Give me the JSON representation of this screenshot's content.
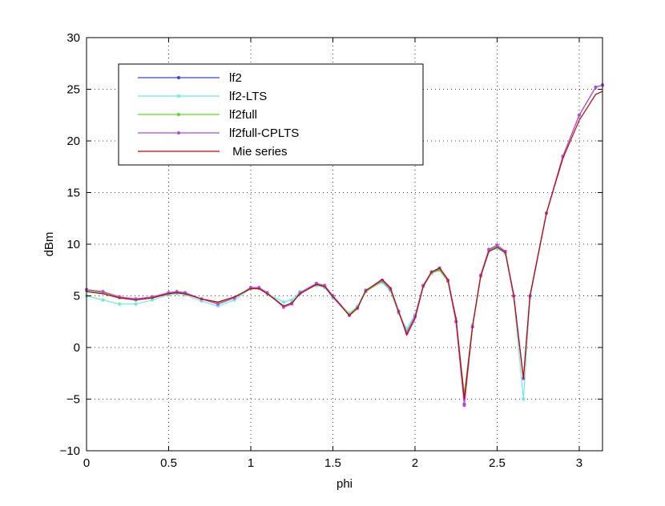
{
  "chart_data": {
    "type": "line",
    "xlabel": "phi",
    "ylabel": "dBm",
    "xlim": [
      0,
      3.1416
    ],
    "ylim": [
      -10,
      30
    ],
    "xticks": [
      0,
      0.5,
      1,
      1.5,
      2,
      2.5,
      3
    ],
    "xtick_labels": [
      "0",
      "0.5",
      "1",
      "1.5",
      "2",
      "2.5",
      "3"
    ],
    "yticks": [
      -10,
      -5,
      0,
      5,
      10,
      15,
      20,
      25,
      30
    ],
    "ytick_labels": [
      "−10",
      "−5",
      "0",
      "5",
      "10",
      "15",
      "20",
      "25",
      "30"
    ],
    "grid": true,
    "legend_position": "top-left",
    "series": [
      {
        "name": "lf2",
        "color": "#3344dd",
        "marker": true,
        "points": [
          [
            0,
            5.6
          ],
          [
            0.1,
            5.4
          ],
          [
            0.2,
            4.9
          ],
          [
            0.3,
            4.7
          ],
          [
            0.4,
            4.9
          ],
          [
            0.5,
            5.3
          ],
          [
            0.55,
            5.4
          ],
          [
            0.6,
            5.3
          ],
          [
            0.7,
            4.7
          ],
          [
            0.8,
            4.2
          ],
          [
            0.9,
            4.8
          ],
          [
            1.0,
            5.8
          ],
          [
            1.05,
            5.8
          ],
          [
            1.1,
            5.3
          ],
          [
            1.2,
            4.0
          ],
          [
            1.25,
            4.3
          ],
          [
            1.3,
            5.3
          ],
          [
            1.4,
            6.2
          ],
          [
            1.45,
            6.0
          ],
          [
            1.5,
            5.0
          ],
          [
            1.6,
            3.2
          ],
          [
            1.65,
            3.9
          ],
          [
            1.7,
            5.5
          ],
          [
            1.8,
            6.5
          ],
          [
            1.85,
            5.7
          ],
          [
            1.9,
            3.5
          ],
          [
            1.95,
            1.5
          ],
          [
            2.0,
            3.0
          ],
          [
            2.05,
            6.0
          ],
          [
            2.1,
            7.3
          ],
          [
            2.15,
            7.6
          ],
          [
            2.2,
            6.5
          ],
          [
            2.25,
            2.5
          ],
          [
            2.3,
            -5.5
          ],
          [
            2.35,
            2.0
          ],
          [
            2.4,
            7.0
          ],
          [
            2.45,
            9.5
          ],
          [
            2.5,
            9.9
          ],
          [
            2.55,
            9.3
          ],
          [
            2.6,
            5.0
          ],
          [
            2.66,
            -3.0
          ],
          [
            2.7,
            5.0
          ],
          [
            2.8,
            13.0
          ],
          [
            2.9,
            18.5
          ],
          [
            3.0,
            22.5
          ],
          [
            3.1,
            25.2
          ],
          [
            3.1416,
            25.4
          ]
        ]
      },
      {
        "name": "lf2-LTS",
        "color": "#66eedd",
        "marker": true,
        "points": [
          [
            0,
            5.0
          ],
          [
            0.1,
            4.6
          ],
          [
            0.2,
            4.2
          ],
          [
            0.3,
            4.2
          ],
          [
            0.4,
            4.6
          ],
          [
            0.5,
            5.1
          ],
          [
            0.55,
            5.2
          ],
          [
            0.6,
            5.1
          ],
          [
            0.7,
            4.5
          ],
          [
            0.8,
            4.0
          ],
          [
            0.9,
            4.6
          ],
          [
            1.0,
            5.7
          ],
          [
            1.05,
            5.7
          ],
          [
            1.1,
            5.2
          ],
          [
            1.2,
            4.4
          ],
          [
            1.25,
            4.6
          ],
          [
            1.3,
            5.4
          ],
          [
            1.4,
            6.0
          ],
          [
            1.45,
            5.8
          ],
          [
            1.5,
            4.8
          ],
          [
            1.6,
            3.3
          ],
          [
            1.65,
            4.0
          ],
          [
            1.7,
            5.6
          ],
          [
            1.8,
            6.3
          ],
          [
            1.85,
            5.5
          ],
          [
            1.9,
            3.3
          ],
          [
            1.95,
            1.8
          ],
          [
            2.0,
            3.2
          ],
          [
            2.05,
            6.0
          ],
          [
            2.1,
            7.2
          ],
          [
            2.15,
            7.5
          ],
          [
            2.2,
            6.4
          ],
          [
            2.25,
            2.8
          ],
          [
            2.3,
            -4.5
          ],
          [
            2.35,
            2.2
          ],
          [
            2.4,
            7.0
          ],
          [
            2.45,
            9.3
          ],
          [
            2.5,
            9.6
          ],
          [
            2.55,
            9.1
          ],
          [
            2.6,
            5.0
          ],
          [
            2.66,
            -5.0
          ],
          [
            2.7,
            4.8
          ],
          [
            2.8,
            13.0
          ],
          [
            2.9,
            18.5
          ],
          [
            3.0,
            22.5
          ],
          [
            3.1,
            25.2
          ],
          [
            3.1416,
            25.4
          ]
        ]
      },
      {
        "name": "lf2full",
        "color": "#55dd22",
        "marker": true,
        "points": [
          [
            0,
            5.5
          ],
          [
            0.1,
            5.3
          ],
          [
            0.2,
            4.8
          ],
          [
            0.3,
            4.6
          ],
          [
            0.4,
            4.8
          ],
          [
            0.5,
            5.2
          ],
          [
            0.55,
            5.3
          ],
          [
            0.6,
            5.2
          ],
          [
            0.7,
            4.7
          ],
          [
            0.8,
            4.3
          ],
          [
            0.9,
            4.8
          ],
          [
            1.0,
            5.7
          ],
          [
            1.05,
            5.7
          ],
          [
            1.1,
            5.2
          ],
          [
            1.2,
            4.0
          ],
          [
            1.25,
            4.3
          ],
          [
            1.3,
            5.2
          ],
          [
            1.4,
            6.1
          ],
          [
            1.45,
            5.9
          ],
          [
            1.5,
            4.9
          ],
          [
            1.6,
            3.2
          ],
          [
            1.65,
            3.9
          ],
          [
            1.7,
            5.4
          ],
          [
            1.8,
            6.4
          ],
          [
            1.85,
            5.6
          ],
          [
            1.9,
            3.4
          ],
          [
            1.95,
            1.5
          ],
          [
            2.0,
            3.0
          ],
          [
            2.05,
            5.9
          ],
          [
            2.1,
            7.2
          ],
          [
            2.15,
            7.5
          ],
          [
            2.2,
            6.4
          ],
          [
            2.25,
            2.5
          ],
          [
            2.3,
            -4.5
          ],
          [
            2.35,
            2.0
          ],
          [
            2.4,
            6.9
          ],
          [
            2.45,
            9.4
          ],
          [
            2.5,
            9.8
          ],
          [
            2.55,
            9.2
          ],
          [
            2.6,
            5.0
          ],
          [
            2.66,
            -3.0
          ],
          [
            2.7,
            5.0
          ],
          [
            2.8,
            13.0
          ],
          [
            2.9,
            18.5
          ],
          [
            3.0,
            22.5
          ],
          [
            3.1,
            25.2
          ],
          [
            3.1416,
            25.4
          ]
        ]
      },
      {
        "name": "lf2full-CPLTS",
        "color": "#bb44ee",
        "marker": true,
        "points": [
          [
            0,
            5.6
          ],
          [
            0.1,
            5.4
          ],
          [
            0.2,
            4.9
          ],
          [
            0.3,
            4.7
          ],
          [
            0.4,
            4.9
          ],
          [
            0.5,
            5.3
          ],
          [
            0.55,
            5.4
          ],
          [
            0.6,
            5.3
          ],
          [
            0.7,
            4.7
          ],
          [
            0.8,
            4.2
          ],
          [
            0.9,
            4.8
          ],
          [
            1.0,
            5.8
          ],
          [
            1.05,
            5.8
          ],
          [
            1.1,
            5.3
          ],
          [
            1.2,
            3.9
          ],
          [
            1.25,
            4.2
          ],
          [
            1.3,
            5.3
          ],
          [
            1.4,
            6.2
          ],
          [
            1.45,
            6.0
          ],
          [
            1.5,
            5.0
          ],
          [
            1.6,
            3.1
          ],
          [
            1.65,
            3.8
          ],
          [
            1.7,
            5.5
          ],
          [
            1.8,
            6.5
          ],
          [
            1.85,
            5.7
          ],
          [
            1.9,
            3.5
          ],
          [
            1.95,
            1.4
          ],
          [
            2.0,
            3.0
          ],
          [
            2.05,
            6.0
          ],
          [
            2.1,
            7.3
          ],
          [
            2.15,
            7.7
          ],
          [
            2.2,
            6.5
          ],
          [
            2.25,
            2.5
          ],
          [
            2.3,
            -5.6
          ],
          [
            2.35,
            2.0
          ],
          [
            2.4,
            7.0
          ],
          [
            2.45,
            9.5
          ],
          [
            2.5,
            9.9
          ],
          [
            2.55,
            9.3
          ],
          [
            2.6,
            5.0
          ],
          [
            2.66,
            -3.0
          ],
          [
            2.7,
            5.0
          ],
          [
            2.8,
            13.0
          ],
          [
            2.9,
            18.5
          ],
          [
            3.0,
            22.5
          ],
          [
            3.1,
            25.2
          ],
          [
            3.1416,
            25.4
          ]
        ]
      },
      {
        "name": " Mie series",
        "color": "#cc0000",
        "marker": false,
        "points": [
          [
            0,
            5.4
          ],
          [
            0.1,
            5.2
          ],
          [
            0.2,
            4.8
          ],
          [
            0.3,
            4.6
          ],
          [
            0.4,
            4.8
          ],
          [
            0.5,
            5.2
          ],
          [
            0.55,
            5.3
          ],
          [
            0.6,
            5.2
          ],
          [
            0.7,
            4.7
          ],
          [
            0.8,
            4.4
          ],
          [
            0.9,
            4.9
          ],
          [
            1.0,
            5.7
          ],
          [
            1.05,
            5.7
          ],
          [
            1.1,
            5.2
          ],
          [
            1.2,
            4.0
          ],
          [
            1.25,
            4.3
          ],
          [
            1.3,
            5.2
          ],
          [
            1.4,
            6.1
          ],
          [
            1.45,
            5.9
          ],
          [
            1.5,
            4.9
          ],
          [
            1.6,
            3.1
          ],
          [
            1.65,
            3.8
          ],
          [
            1.7,
            5.5
          ],
          [
            1.8,
            6.6
          ],
          [
            1.85,
            5.8
          ],
          [
            1.9,
            3.5
          ],
          [
            1.95,
            1.2
          ],
          [
            2.0,
            2.8
          ],
          [
            2.05,
            5.9
          ],
          [
            2.1,
            7.3
          ],
          [
            2.15,
            7.7
          ],
          [
            2.2,
            6.6
          ],
          [
            2.25,
            2.8
          ],
          [
            2.3,
            -5.0
          ],
          [
            2.35,
            2.0
          ],
          [
            2.4,
            6.9
          ],
          [
            2.45,
            9.3
          ],
          [
            2.5,
            9.7
          ],
          [
            2.55,
            9.2
          ],
          [
            2.6,
            5.2
          ],
          [
            2.66,
            -3.0
          ],
          [
            2.7,
            5.0
          ],
          [
            2.8,
            13.0
          ],
          [
            2.9,
            18.3
          ],
          [
            3.0,
            22.0
          ],
          [
            3.1,
            24.5
          ],
          [
            3.1416,
            24.8
          ]
        ]
      }
    ]
  }
}
